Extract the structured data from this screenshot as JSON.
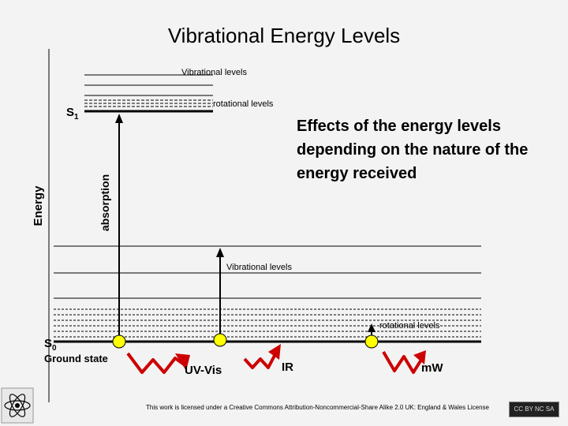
{
  "title": "Vibrational Energy Levels",
  "axis": {
    "energy": "Energy",
    "absorption": "absorption"
  },
  "excited": {
    "state_letter": "S",
    "state_sub": "1",
    "vibrational_label": "Vibrational levels",
    "rotational_label": "rotational levels"
  },
  "ground": {
    "state_letter": "S",
    "state_sub": "0",
    "state_name": "Ground state",
    "vibrational_label": "Vibrational levels",
    "rotational_label": "rotational levels"
  },
  "effects_text": "Effects of the energy levels depending on the nature of the energy received",
  "radiation": {
    "uv": "UV-Vis",
    "ir": "IR",
    "mw": "mW"
  },
  "license": "This work is licensed under a Creative Commons Attribution-Noncommercial-Share Alike 2.0 UK: England & Wales License",
  "badge": "CC BY NC SA",
  "colors": {
    "marker_fill": "#ffff00",
    "wave": "#cc0000",
    "line": "#000000"
  }
}
